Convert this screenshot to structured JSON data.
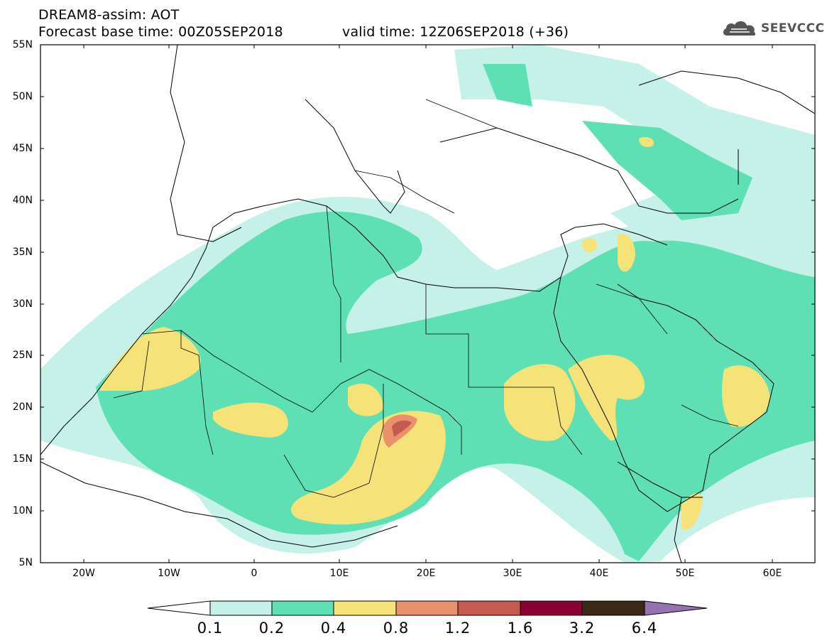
{
  "header": {
    "title": "DREAM8-assim: AOT",
    "base_time": "Forecast base time: 00Z05SEP2018",
    "valid_time": "valid time: 12Z06SEP2018 (+36)"
  },
  "logo": {
    "text": "SEEVCCC",
    "icon": "cloud-icon"
  },
  "map": {
    "lat_labels": [
      "55N",
      "50N",
      "45N",
      "40N",
      "35N",
      "30N",
      "25N",
      "20N",
      "15N",
      "10N",
      "5N"
    ],
    "lon_labels": [
      "20W",
      "10W",
      "0",
      "10E",
      "20E",
      "30E",
      "40E",
      "50E",
      "60E"
    ],
    "colors": {
      "c01": "#c6f1e8",
      "c02": "#5ee0b4",
      "c04": "#f5e37a",
      "c08": "#e8916b",
      "c12": "#c45a50",
      "c16": "#8b0033",
      "c32": "#3b2a17",
      "c64": "#9473b0"
    }
  },
  "colorbar": {
    "labels": [
      "0.1",
      "0.2",
      "0.4",
      "0.8",
      "1.2",
      "1.6",
      "3.2",
      "6.4"
    ]
  }
}
